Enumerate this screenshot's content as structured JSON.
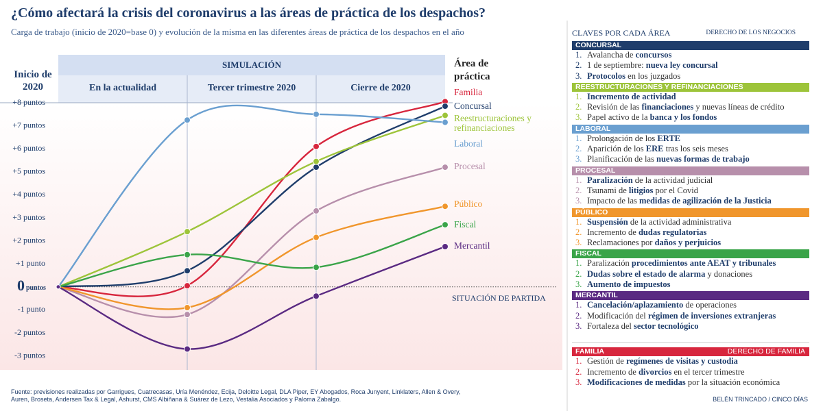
{
  "chart_data": {
    "type": "line",
    "title": "¿Cómo afectará la crisis del coronavirus a las áreas de práctica de los despachos?",
    "subtitle": "Carga de trabajo (inicio de 2020=base 0) y evolución de la misma en las diferentes áreas de práctica de los despachos en el año",
    "band_title": "SIMULACIÓN",
    "legend_title": "Área de práctica",
    "baseline_label": "SITUACIÓN DE PARTIDA",
    "zero_unit": "puntos",
    "categories": [
      "Inicio de 2020",
      "En la actualidad",
      "Tercer trimestre 2020",
      "Cierre de 2020"
    ],
    "ylim": [
      -3.5,
      8
    ],
    "yticks": [
      {
        "value": 8,
        "label": "+8 puntos"
      },
      {
        "value": 7,
        "label": "+7 puntos"
      },
      {
        "value": 6,
        "label": "+6 puntos"
      },
      {
        "value": 5,
        "label": "+5 puntos"
      },
      {
        "value": 4,
        "label": "+4 puntos"
      },
      {
        "value": 3,
        "label": "+3 puntos"
      },
      {
        "value": 2,
        "label": "+2 puntos"
      },
      {
        "value": 1,
        "label": "+1 punto"
      },
      0,
      {
        "value": -1,
        "label": "-1 punto"
      },
      {
        "value": -2,
        "label": "-2 puntos"
      },
      {
        "value": -3,
        "label": "-3 puntos"
      }
    ],
    "series": [
      {
        "name": "Familia",
        "color": "#d7263d",
        "values": [
          0,
          0.05,
          6.1,
          8.05
        ]
      },
      {
        "name": "Concursal",
        "color": "#1f3d6b",
        "values": [
          0,
          0.7,
          5.2,
          7.85
        ]
      },
      {
        "name": "Reestructuraciones y refinanciaciones",
        "color": "#9dc43a",
        "values": [
          0,
          2.4,
          5.45,
          7.45
        ]
      },
      {
        "name": "Laboral",
        "color": "#6a9fd0",
        "values": [
          0,
          7.25,
          7.5,
          7.15
        ]
      },
      {
        "name": "Procesal",
        "color": "#b78fab",
        "values": [
          0,
          -1.2,
          3.3,
          5.2
        ]
      },
      {
        "name": "Público",
        "color": "#f0962c",
        "values": [
          0,
          -0.9,
          2.15,
          3.5
        ]
      },
      {
        "name": "Fiscal",
        "color": "#3aa449",
        "values": [
          0,
          1.4,
          0.85,
          2.7
        ]
      },
      {
        "name": "Mercantil",
        "color": "#5a2a82",
        "values": [
          0,
          -2.7,
          -0.4,
          1.75
        ]
      }
    ],
    "source": "Fuente: previsiones realizadas por Garrigues, Cuatrecasas, Uría Menéndez, Ecija, Deloitte Legal, DLA Piper, EY Abogados, Roca Junyent, Linklaters, Allen & Overy, Auren, Broseta, Andersen Tax & Legal, Ashurst, CMS Albiñana & Suárez de Lezo, Vestalia Asociados y Paloma Zabalgo."
  },
  "panel": {
    "title": "CLAVES POR CADA ÁREA",
    "subtitle": "DERECHO DE LOS NEGOCIOS",
    "sections": [
      {
        "name": "CONCURSAL",
        "color": "#1f3d6b",
        "items": [
          {
            "n": "1.",
            "parts": [
              {
                "text": "Avalancha de "
              },
              {
                "text": "concursos",
                "bold": true
              }
            ]
          },
          {
            "n": "2.",
            "parts": [
              {
                "text": "1 de septiembre: "
              },
              {
                "text": "nueva ley concursal",
                "bold": true
              }
            ]
          },
          {
            "n": "3.",
            "parts": [
              {
                "text": "Protocolos",
                "bold": true
              },
              {
                "text": " en los juzgados"
              }
            ]
          }
        ]
      },
      {
        "name": "REESTRUCTURACIONES Y REFINANCIACIONES",
        "color": "#9dc43a",
        "items": [
          {
            "n": "1.",
            "parts": [
              {
                "text": "Incremento de actividad",
                "bold": true
              }
            ]
          },
          {
            "n": "2.",
            "parts": [
              {
                "text": "Revisión de las "
              },
              {
                "text": "financiaciones",
                "bold": true
              },
              {
                "text": " y nuevas líneas de crédito"
              }
            ]
          },
          {
            "n": "3.",
            "parts": [
              {
                "text": "Papel activo de la "
              },
              {
                "text": "banca y los fondos",
                "bold": true
              }
            ]
          }
        ]
      },
      {
        "name": "LABORAL",
        "color": "#6a9fd0",
        "items": [
          {
            "n": "1.",
            "parts": [
              {
                "text": "Prolongación de los "
              },
              {
                "text": "ERTE",
                "bold": true
              }
            ]
          },
          {
            "n": "2.",
            "parts": [
              {
                "text": "Aparición de los "
              },
              {
                "text": "ERE",
                "bold": true
              },
              {
                "text": " tras los seis meses"
              }
            ]
          },
          {
            "n": "3.",
            "parts": [
              {
                "text": "Planificación de las "
              },
              {
                "text": "nuevas formas de trabajo",
                "bold": true
              }
            ]
          }
        ]
      },
      {
        "name": "PROCESAL",
        "color": "#b78fab",
        "items": [
          {
            "n": "1.",
            "parts": [
              {
                "text": "Paralización",
                "bold": true
              },
              {
                "text": " de la actividad judicial"
              }
            ]
          },
          {
            "n": "2.",
            "parts": [
              {
                "text": "Tsunami de "
              },
              {
                "text": "litigios",
                "bold": true
              },
              {
                "text": " por el Covid"
              }
            ]
          },
          {
            "n": "3.",
            "parts": [
              {
                "text": "Impacto de las "
              },
              {
                "text": "medidas de agilización de la Justicia",
                "bold": true
              }
            ]
          }
        ]
      },
      {
        "name": "PÚBLICO",
        "color": "#f0962c",
        "items": [
          {
            "n": "1.",
            "parts": [
              {
                "text": "Suspensión",
                "bold": true
              },
              {
                "text": " de la actividad administrativa"
              }
            ]
          },
          {
            "n": "2.",
            "parts": [
              {
                "text": "Incremento de "
              },
              {
                "text": "dudas regulatorias",
                "bold": true
              }
            ]
          },
          {
            "n": "3.",
            "parts": [
              {
                "text": "Reclamaciones por "
              },
              {
                "text": "daños y perjuicios",
                "bold": true
              }
            ]
          }
        ]
      },
      {
        "name": "FISCAL",
        "color": "#3aa449",
        "items": [
          {
            "n": "1.",
            "parts": [
              {
                "text": "Paralización "
              },
              {
                "text": "procedimientos ante AEAT y tribunales",
                "bold": true
              }
            ]
          },
          {
            "n": "2.",
            "parts": [
              {
                "text": "Dudas sobre el estado de alarma",
                "bold": true
              },
              {
                "text": " y donaciones"
              }
            ]
          },
          {
            "n": "3.",
            "parts": [
              {
                "text": "Aumento de impuestos",
                "bold": true
              }
            ]
          }
        ]
      },
      {
        "name": "MERCANTIL",
        "color": "#5a2a82",
        "items": [
          {
            "n": "1.",
            "parts": [
              {
                "text": "Cancelación/aplazamiento",
                "bold": true
              },
              {
                "text": " de operaciones"
              }
            ]
          },
          {
            "n": "2.",
            "parts": [
              {
                "text": "Modificación del "
              },
              {
                "text": "régimen de inversiones extranjeras",
                "bold": true
              }
            ]
          },
          {
            "n": "3.",
            "parts": [
              {
                "text": "Fortaleza del "
              },
              {
                "text": "sector tecnológico",
                "bold": true
              }
            ]
          }
        ]
      },
      {
        "name": "FAMILIA",
        "right_label": "DERECHO DE FAMILIA",
        "color": "#d7263d",
        "items": [
          {
            "n": "1.",
            "parts": [
              {
                "text": "Gestión de "
              },
              {
                "text": "regímenes de visitas y custodia",
                "bold": true
              }
            ]
          },
          {
            "n": "2.",
            "parts": [
              {
                "text": "Incremento de "
              },
              {
                "text": "divorcios",
                "bold": true
              },
              {
                "text": " en el tercer trimestre"
              }
            ]
          },
          {
            "n": "3.",
            "parts": [
              {
                "text": "Modificaciones de medidas",
                "bold": true
              },
              {
                "text": " por la situación económica"
              }
            ]
          }
        ]
      }
    ]
  },
  "credit": "BELÉN TRINCADO / CINCO DÍAS"
}
